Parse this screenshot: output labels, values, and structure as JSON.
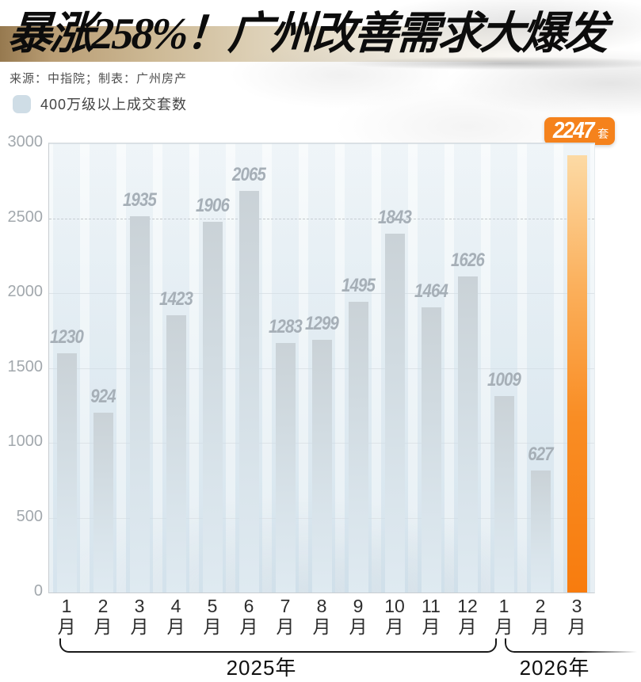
{
  "header": {
    "title": "暴涨258%！广州改善需求大爆发",
    "source": "来源：中指院；制表：广州房产"
  },
  "legend": {
    "label": "400万级以上成交套数"
  },
  "badge": {
    "value": "2247",
    "unit": "套"
  },
  "chart_data": {
    "type": "bar",
    "title": "400万级以上成交套数",
    "categories": [
      "1",
      "2",
      "3",
      "4",
      "5",
      "6",
      "7",
      "8",
      "9",
      "10",
      "11",
      "12",
      "1",
      "2",
      "3"
    ],
    "category_suffix": "月",
    "values": [
      1230,
      924,
      1935,
      1423,
      1906,
      2065,
      1283,
      1299,
      1495,
      1843,
      1464,
      1626,
      1009,
      627,
      2247
    ],
    "highlight_index": 14,
    "highlight_value_shown_in_badge": "2247",
    "y_ticks": [
      0,
      500,
      1000,
      1500,
      2000,
      2500,
      3000
    ],
    "ylim": [
      0,
      3000
    ],
    "dashed_tick": 2500,
    "bar_visual_multiplier": 1.3,
    "grid": true,
    "legend_position": "top-left",
    "year_groups": [
      {
        "label": "2025年",
        "start": 0,
        "end": 11
      },
      {
        "label": "2026年",
        "start": 12,
        "end": 14
      }
    ],
    "colors": {
      "bar_top": "#cad2d7",
      "bar_bottom": "#dfeaf1",
      "stripe": "rgba(203,221,233,0.6)",
      "highlight_top": "#fcdaa5",
      "highlight_bottom": "#f87c0e",
      "badge_bg": "#f5821c",
      "value_label": "#a6afb7",
      "axis_label": "#a2a8ad",
      "title_band": "#b99d74"
    }
  }
}
